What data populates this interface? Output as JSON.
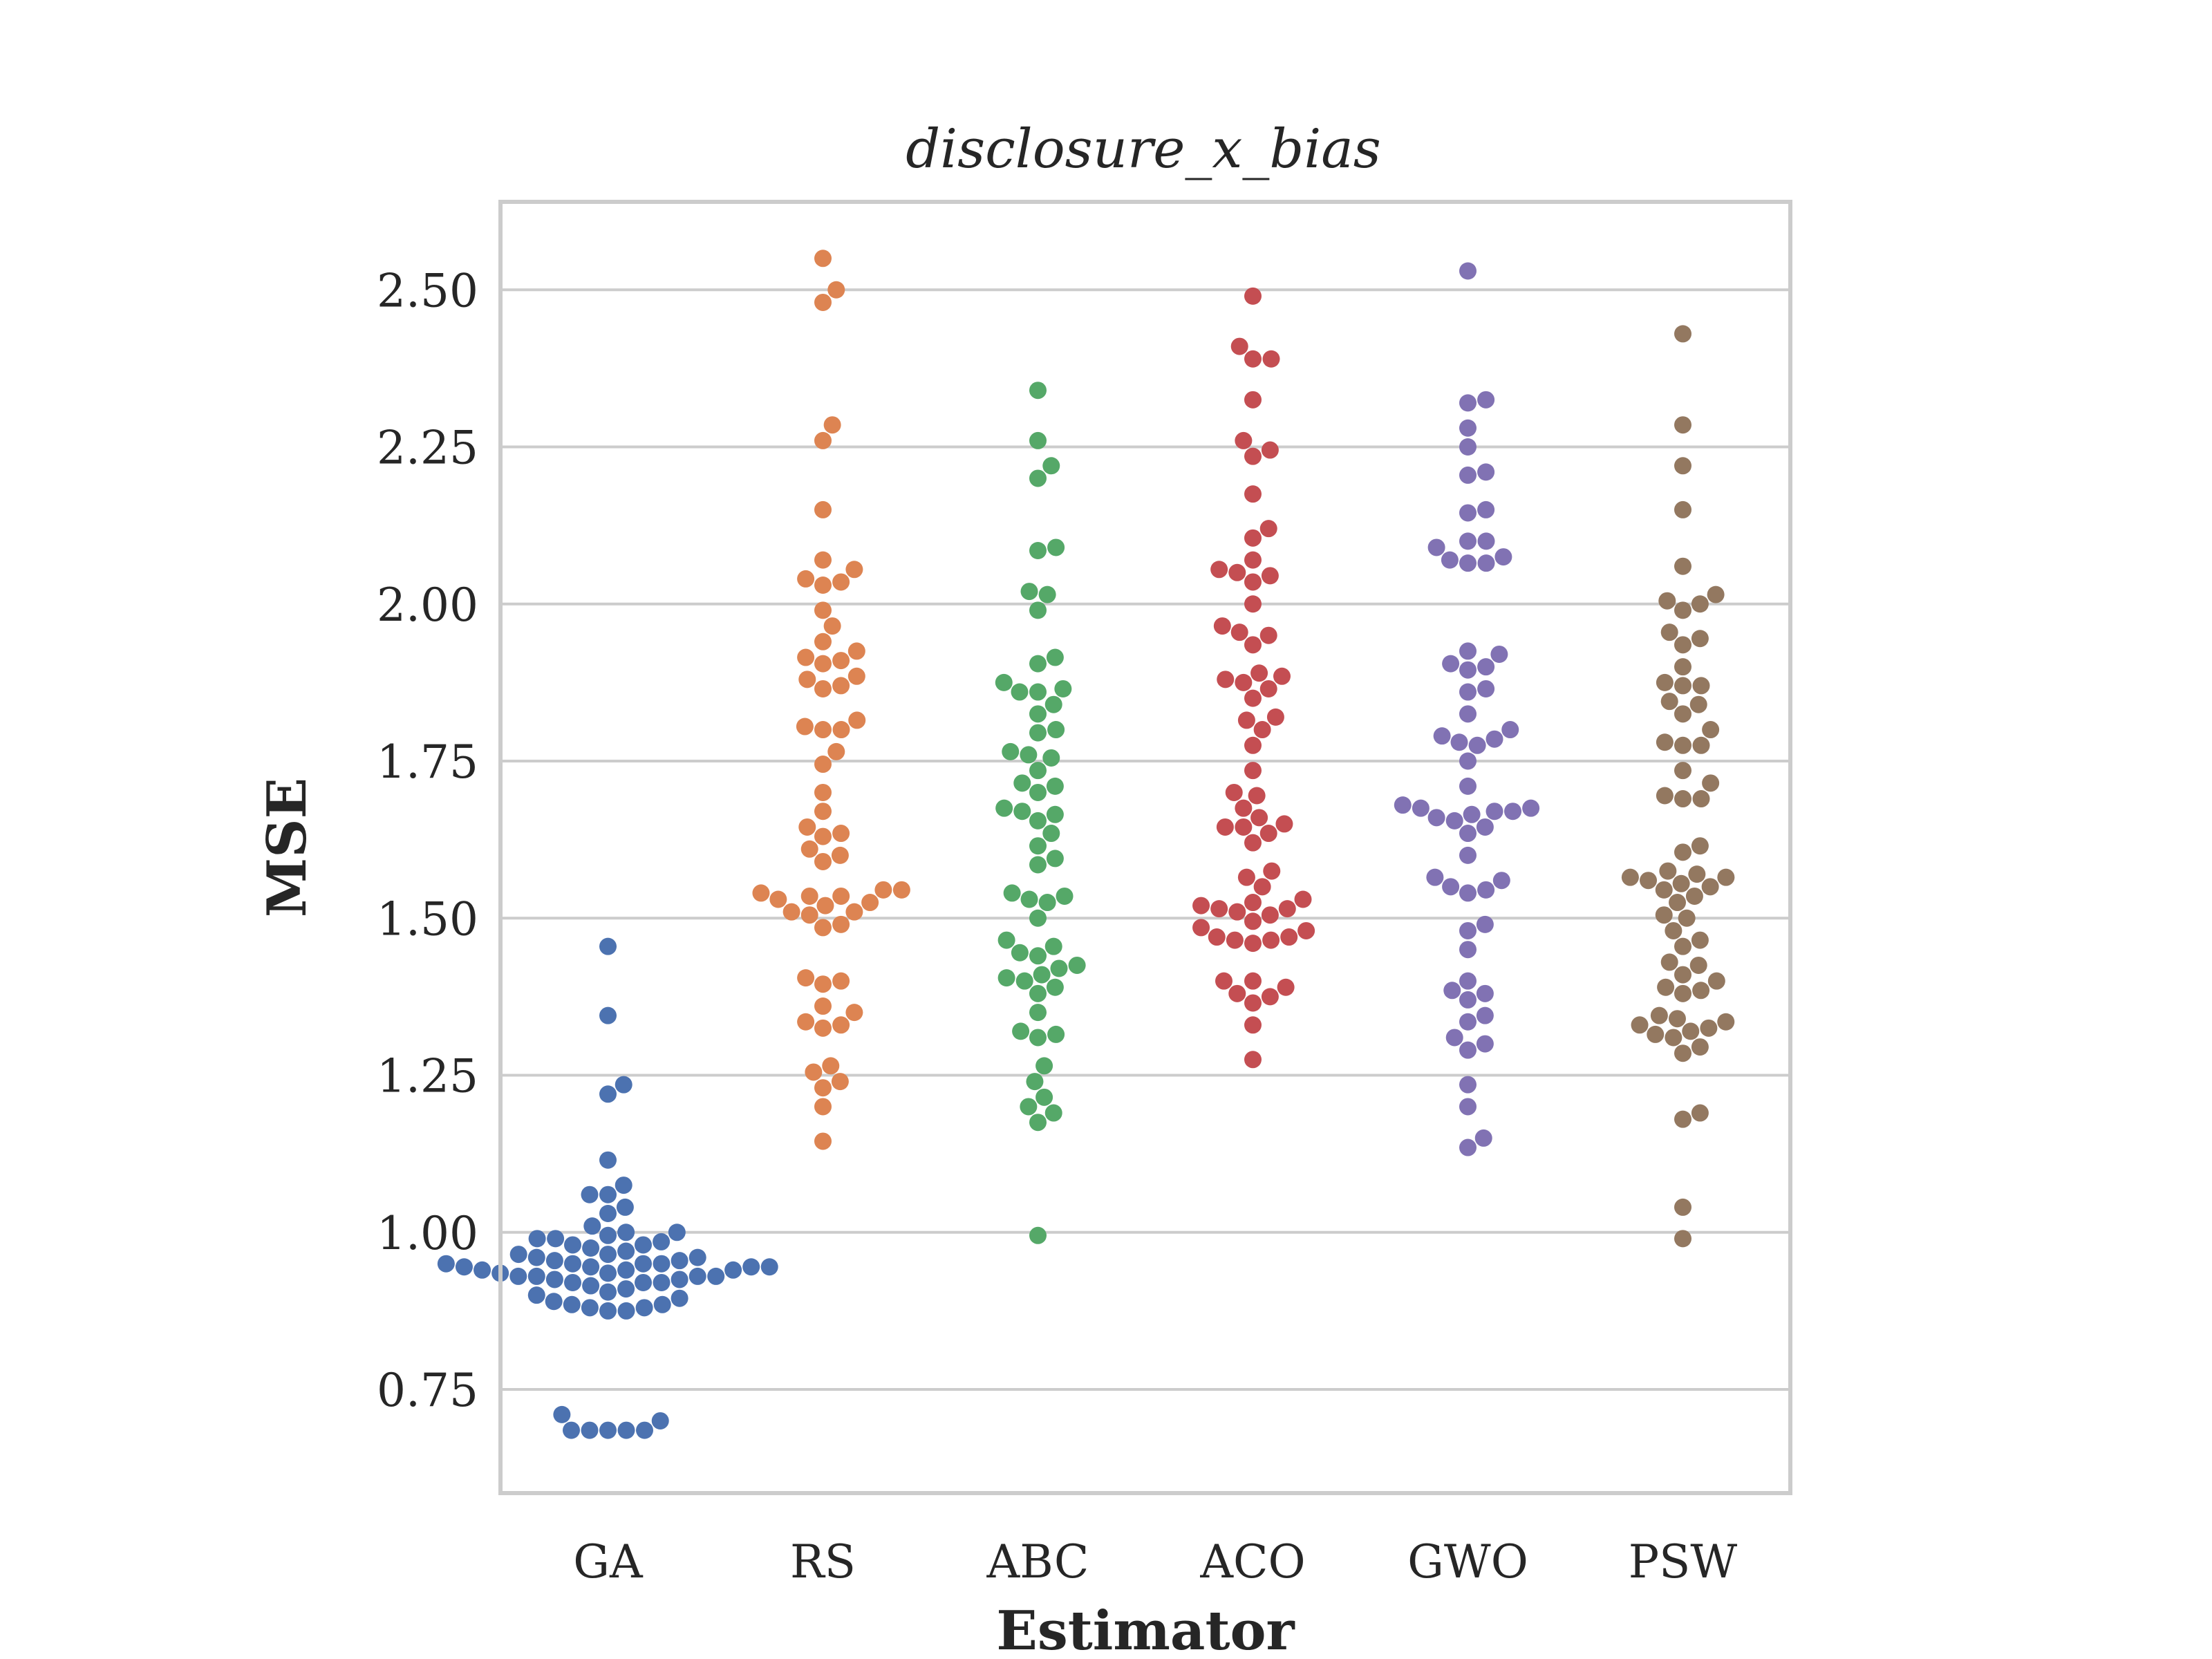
{
  "chart_data": {
    "type": "scatter",
    "subtype": "swarm",
    "title": "disclosure_x_bias",
    "xlabel": "Estimator",
    "ylabel": "MSE",
    "ylim": [
      0.585,
      2.64
    ],
    "yticks": [
      0.75,
      1.0,
      1.25,
      1.5,
      1.75,
      2.0,
      2.25,
      2.5
    ],
    "ytick_labels": [
      "0.75",
      "1.00",
      "1.25",
      "1.50",
      "1.75",
      "2.00",
      "2.25",
      "2.50"
    ],
    "grid": true,
    "legend": "none",
    "categories": [
      "GA",
      "RS",
      "ABC",
      "ACO",
      "GWO",
      "PSW"
    ],
    "series": [
      {
        "color": "#4c72b0",
        "values": [
          0.685,
          0.685,
          0.685,
          0.685,
          0.685,
          0.7,
          0.71,
          0.875,
          0.875,
          0.88,
          0.88,
          0.885,
          0.885,
          0.89,
          0.895,
          0.9,
          0.905,
          0.91,
          0.915,
          0.92,
          0.92,
          0.92,
          0.925,
          0.925,
          0.93,
          0.93,
          0.93,
          0.93,
          0.935,
          0.935,
          0.94,
          0.94,
          0.94,
          0.945,
          0.945,
          0.945,
          0.945,
          0.95,
          0.95,
          0.95,
          0.95,
          0.955,
          0.955,
          0.96,
          0.96,
          0.965,
          0.965,
          0.97,
          0.975,
          0.98,
          0.98,
          0.985,
          0.99,
          0.99,
          0.995,
          1.0,
          1.0,
          1.01,
          1.03,
          1.04,
          1.06,
          1.06,
          1.075,
          1.115,
          1.22,
          1.235,
          1.345,
          1.455
        ]
      },
      {
        "color": "#dd8452",
        "values": [
          1.145,
          1.2,
          1.23,
          1.24,
          1.255,
          1.265,
          1.325,
          1.33,
          1.335,
          1.35,
          1.36,
          1.395,
          1.4,
          1.405,
          1.485,
          1.49,
          1.505,
          1.51,
          1.51,
          1.52,
          1.525,
          1.53,
          1.535,
          1.535,
          1.54,
          1.545,
          1.545,
          1.59,
          1.6,
          1.61,
          1.63,
          1.635,
          1.645,
          1.67,
          1.7,
          1.745,
          1.765,
          1.8,
          1.8,
          1.805,
          1.815,
          1.865,
          1.87,
          1.885,
          1.88,
          1.905,
          1.91,
          1.915,
          1.925,
          1.94,
          1.965,
          1.99,
          2.03,
          2.035,
          2.04,
          2.055,
          2.07,
          2.15,
          2.26,
          2.285,
          2.48,
          2.5,
          2.55
        ]
      },
      {
        "color": "#55a868",
        "values": [
          0.995,
          1.175,
          1.19,
          1.2,
          1.215,
          1.24,
          1.265,
          1.31,
          1.315,
          1.32,
          1.35,
          1.38,
          1.39,
          1.4,
          1.405,
          1.41,
          1.42,
          1.425,
          1.44,
          1.445,
          1.455,
          1.465,
          1.5,
          1.525,
          1.53,
          1.535,
          1.54,
          1.585,
          1.595,
          1.615,
          1.635,
          1.655,
          1.665,
          1.67,
          1.675,
          1.7,
          1.71,
          1.715,
          1.735,
          1.755,
          1.76,
          1.765,
          1.795,
          1.8,
          1.825,
          1.84,
          1.86,
          1.86,
          1.865,
          1.875,
          1.905,
          1.915,
          1.99,
          2.015,
          2.02,
          2.085,
          2.09,
          2.2,
          2.22,
          2.26,
          2.34
        ]
      },
      {
        "color": "#c44e52",
        "values": [
          1.275,
          1.33,
          1.365,
          1.375,
          1.38,
          1.39,
          1.4,
          1.4,
          1.46,
          1.465,
          1.465,
          1.47,
          1.47,
          1.48,
          1.485,
          1.495,
          1.505,
          1.51,
          1.515,
          1.515,
          1.52,
          1.525,
          1.53,
          1.55,
          1.565,
          1.575,
          1.62,
          1.635,
          1.645,
          1.645,
          1.65,
          1.66,
          1.675,
          1.695,
          1.7,
          1.735,
          1.775,
          1.8,
          1.815,
          1.82,
          1.85,
          1.865,
          1.875,
          1.88,
          1.885,
          1.89,
          1.935,
          1.95,
          1.955,
          1.965,
          2.0,
          2.035,
          2.045,
          2.05,
          2.055,
          2.07,
          2.105,
          2.12,
          2.175,
          2.235,
          2.245,
          2.26,
          2.325,
          2.39,
          2.39,
          2.41,
          2.49
        ]
      },
      {
        "color": "#8172b3",
        "values": [
          1.135,
          1.15,
          1.2,
          1.235,
          1.29,
          1.3,
          1.31,
          1.335,
          1.345,
          1.37,
          1.38,
          1.385,
          1.4,
          1.45,
          1.48,
          1.49,
          1.54,
          1.545,
          1.55,
          1.56,
          1.565,
          1.6,
          1.635,
          1.645,
          1.655,
          1.66,
          1.665,
          1.67,
          1.67,
          1.675,
          1.675,
          1.68,
          1.71,
          1.75,
          1.775,
          1.78,
          1.785,
          1.79,
          1.8,
          1.825,
          1.86,
          1.865,
          1.895,
          1.9,
          1.905,
          1.92,
          1.925,
          2.065,
          2.065,
          2.07,
          2.075,
          2.09,
          2.1,
          2.1,
          2.145,
          2.15,
          2.205,
          2.21,
          2.25,
          2.28,
          2.32,
          2.325,
          2.53
        ]
      },
      {
        "color": "#937860",
        "values": [
          0.99,
          1.04,
          1.18,
          1.19,
          1.285,
          1.295,
          1.31,
          1.315,
          1.32,
          1.325,
          1.33,
          1.335,
          1.34,
          1.345,
          1.38,
          1.385,
          1.39,
          1.4,
          1.41,
          1.425,
          1.43,
          1.455,
          1.465,
          1.48,
          1.5,
          1.505,
          1.525,
          1.535,
          1.545,
          1.55,
          1.555,
          1.56,
          1.565,
          1.565,
          1.57,
          1.575,
          1.605,
          1.615,
          1.69,
          1.69,
          1.695,
          1.715,
          1.735,
          1.775,
          1.775,
          1.78,
          1.8,
          1.825,
          1.84,
          1.845,
          1.87,
          1.87,
          1.875,
          1.9,
          1.935,
          1.945,
          1.955,
          1.99,
          2.0,
          2.005,
          2.015,
          2.06,
          2.15,
          2.22,
          2.285,
          2.43
        ]
      }
    ]
  }
}
